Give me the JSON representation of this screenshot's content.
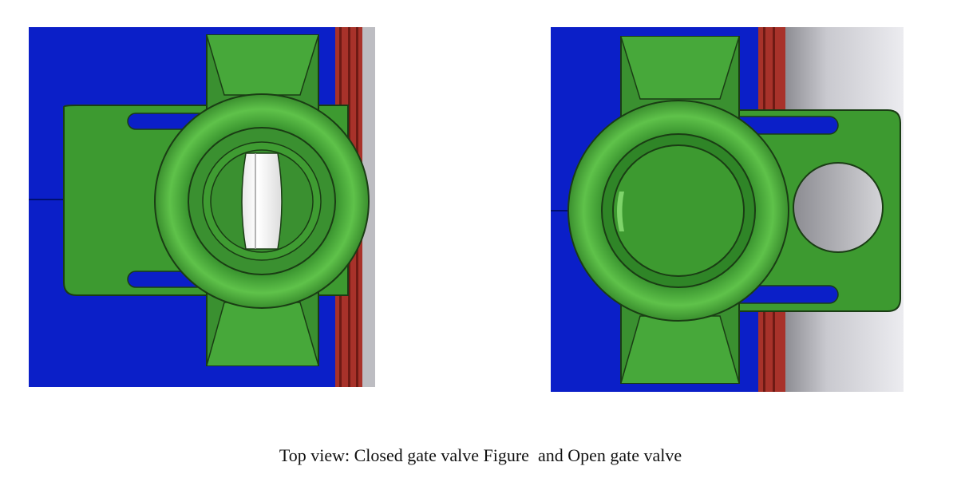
{
  "caption": "Top view: Closed gate valve Figure  and Open gate valve",
  "colors": {
    "background_blue": "#0b1fc8",
    "valve_green": "#3d9a30",
    "valve_green_light": "#5fc24a",
    "valve_green_dark": "#2c7a24",
    "pipe_red": "#a8322a",
    "gate_gray": "#d9d9de"
  }
}
